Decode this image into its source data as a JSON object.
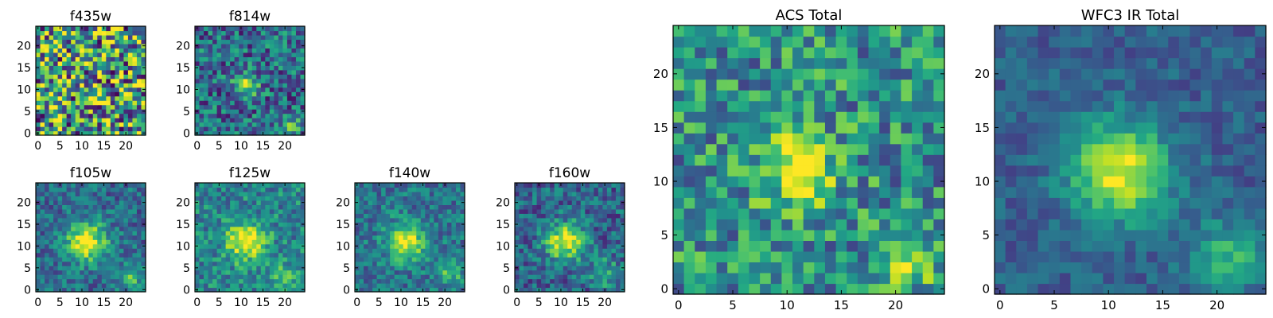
{
  "chart_data": [
    {
      "type": "heatmap",
      "title": "f435w",
      "colormap": "viridis",
      "grid_size": 25,
      "xlim": [
        0,
        24
      ],
      "ylim": [
        0,
        24
      ],
      "xticks": [
        0,
        5,
        10,
        15,
        20
      ],
      "yticks": [
        0,
        5,
        10,
        15,
        20
      ],
      "noise": 0.55,
      "background": 0.55,
      "sources": []
    },
    {
      "type": "heatmap",
      "title": "f814w",
      "colormap": "viridis",
      "grid_size": 25,
      "xlim": [
        0,
        24
      ],
      "ylim": [
        0,
        24
      ],
      "xticks": [
        0,
        5,
        10,
        15,
        20
      ],
      "yticks": [
        0,
        5,
        10,
        15,
        20
      ],
      "noise": 0.3,
      "background": 0.35,
      "sources": [
        {
          "x": 11,
          "y": 11,
          "amplitude": 0.6,
          "sigma": 1.8
        },
        {
          "x": 21,
          "y": 2,
          "amplitude": 0.35,
          "sigma": 1.6
        }
      ]
    },
    {
      "type": "heatmap",
      "title": "f105w",
      "colormap": "viridis",
      "grid_size": 25,
      "xlim": [
        0,
        24
      ],
      "ylim": [
        0,
        24
      ],
      "xticks": [
        0,
        5,
        10,
        15,
        20
      ],
      "yticks": [
        0,
        5,
        10,
        15,
        20
      ],
      "noise": 0.2,
      "background": 0.35,
      "sources": [
        {
          "x": 11,
          "y": 11,
          "amplitude": 0.65,
          "sigma": 3.2
        },
        {
          "x": 21,
          "y": 3,
          "amplitude": 0.35,
          "sigma": 2.2
        }
      ]
    },
    {
      "type": "heatmap",
      "title": "f125w",
      "colormap": "viridis",
      "grid_size": 25,
      "xlim": [
        0,
        24
      ],
      "ylim": [
        0,
        24
      ],
      "xticks": [
        0,
        5,
        10,
        15,
        20
      ],
      "yticks": [
        0,
        5,
        10,
        15,
        20
      ],
      "noise": 0.22,
      "background": 0.45,
      "sources": [
        {
          "x": 11,
          "y": 11,
          "amplitude": 0.55,
          "sigma": 3.2
        },
        {
          "x": 20,
          "y": 3,
          "amplitude": 0.3,
          "sigma": 2.2
        }
      ]
    },
    {
      "type": "heatmap",
      "title": "f140w",
      "colormap": "viridis",
      "grid_size": 25,
      "xlim": [
        0,
        24
      ],
      "ylim": [
        0,
        24
      ],
      "xticks": [
        0,
        5,
        10,
        15,
        20
      ],
      "yticks": [
        0,
        5,
        10,
        15,
        20
      ],
      "noise": 0.2,
      "background": 0.38,
      "sources": [
        {
          "x": 11,
          "y": 11,
          "amplitude": 0.62,
          "sigma": 3.0
        },
        {
          "x": 21,
          "y": 4,
          "amplitude": 0.35,
          "sigma": 2.0
        }
      ]
    },
    {
      "type": "heatmap",
      "title": "f160w",
      "colormap": "viridis",
      "grid_size": 25,
      "xlim": [
        0,
        24
      ],
      "ylim": [
        0,
        24
      ],
      "xticks": [
        0,
        5,
        10,
        15,
        20
      ],
      "yticks": [
        0,
        5,
        10,
        15,
        20
      ],
      "noise": 0.22,
      "background": 0.32,
      "sources": [
        {
          "x": 11,
          "y": 11,
          "amplitude": 0.68,
          "sigma": 3.0
        },
        {
          "x": 20,
          "y": 4,
          "amplitude": 0.3,
          "sigma": 2.4
        }
      ]
    },
    {
      "type": "heatmap",
      "title": "ACS Total",
      "colormap": "viridis",
      "grid_size": 25,
      "xlim": [
        0,
        24
      ],
      "ylim": [
        0,
        24
      ],
      "xticks": [
        0,
        5,
        10,
        15,
        20
      ],
      "yticks": [
        0,
        5,
        10,
        15,
        20
      ],
      "noise": 0.3,
      "background": 0.5,
      "sources": [
        {
          "x": 11,
          "y": 11,
          "amplitude": 0.45,
          "sigma": 2.5
        },
        {
          "x": 21,
          "y": 3,
          "amplitude": 0.35,
          "sigma": 1.8
        }
      ]
    },
    {
      "type": "heatmap",
      "title": "WFC3 IR Total",
      "colormap": "viridis",
      "grid_size": 25,
      "xlim": [
        0,
        24
      ],
      "ylim": [
        0,
        24
      ],
      "xticks": [
        0,
        5,
        10,
        15,
        20
      ],
      "yticks": [
        0,
        5,
        10,
        15,
        20
      ],
      "noise": 0.12,
      "background": 0.3,
      "sources": [
        {
          "x": 11,
          "y": 11,
          "amplitude": 0.68,
          "sigma": 3.2
        },
        {
          "x": 21,
          "y": 3,
          "amplitude": 0.35,
          "sigma": 2.4
        }
      ]
    }
  ]
}
